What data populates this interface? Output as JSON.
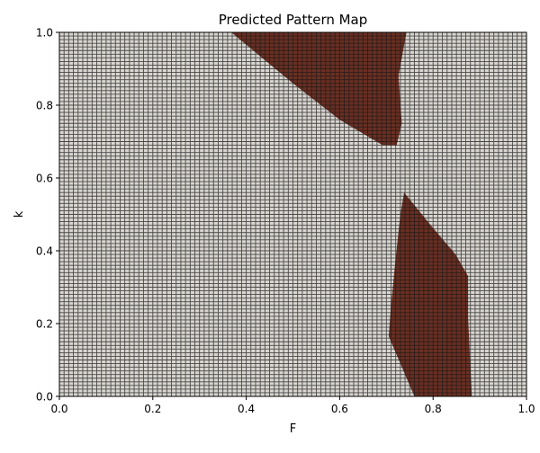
{
  "chart_data": {
    "type": "heatmap",
    "title": "Predicted Pattern Map",
    "xlabel": "F",
    "ylabel": "k",
    "xlim": [
      0.0,
      1.0
    ],
    "ylim": [
      0.0,
      1.0
    ],
    "x_ticks": [
      "0.0",
      "0.2",
      "0.4",
      "0.6",
      "0.8",
      "1.0"
    ],
    "y_ticks": [
      "0.0",
      "0.2",
      "0.4",
      "0.6",
      "0.8",
      "1.0"
    ],
    "grid_resolution": 100,
    "grid": true,
    "classes": [
      {
        "value": 0,
        "color": "#d9d6d1"
      },
      {
        "value": 1,
        "color": "#6b2f22"
      }
    ],
    "regions": [
      {
        "class": 1,
        "polygon": [
          [
            0.368,
            1.0
          ],
          [
            0.743,
            1.0
          ],
          [
            0.726,
            0.88
          ],
          [
            0.733,
            0.75
          ],
          [
            0.722,
            0.69
          ],
          [
            0.692,
            0.69
          ],
          [
            0.6,
            0.76
          ],
          [
            0.5,
            0.86
          ],
          [
            0.368,
            1.0
          ]
        ]
      },
      {
        "class": 1,
        "polygon": [
          [
            0.738,
            0.56
          ],
          [
            0.795,
            0.47
          ],
          [
            0.848,
            0.39
          ],
          [
            0.875,
            0.33
          ],
          [
            0.875,
            0.215
          ],
          [
            0.883,
            0.0
          ],
          [
            0.76,
            0.0
          ],
          [
            0.73,
            0.09
          ],
          [
            0.705,
            0.165
          ],
          [
            0.71,
            0.25
          ],
          [
            0.72,
            0.38
          ],
          [
            0.73,
            0.5
          ],
          [
            0.738,
            0.56
          ]
        ]
      }
    ]
  }
}
